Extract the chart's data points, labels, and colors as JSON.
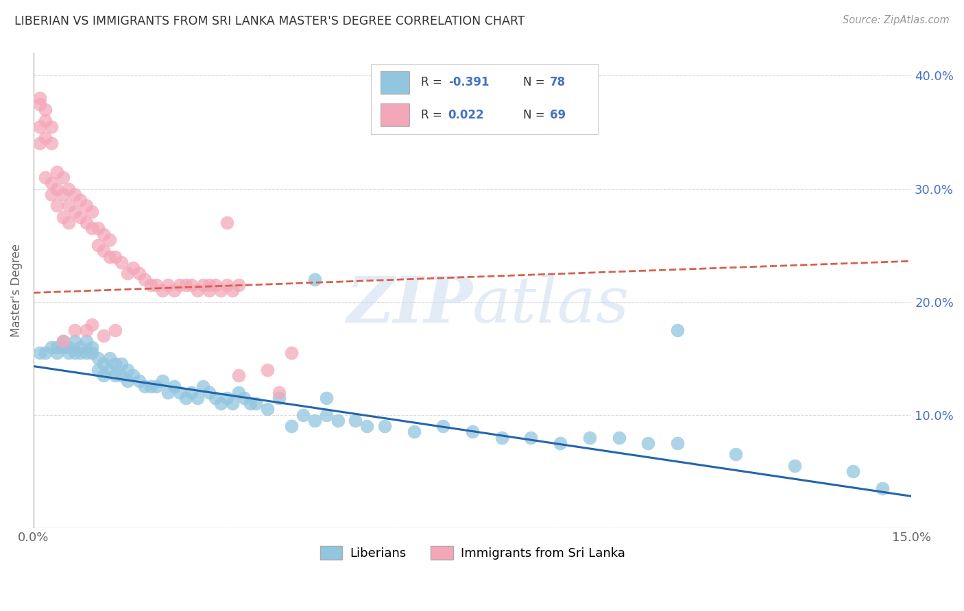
{
  "title": "LIBERIAN VS IMMIGRANTS FROM SRI LANKA MASTER'S DEGREE CORRELATION CHART",
  "source": "Source: ZipAtlas.com",
  "ylabel": "Master's Degree",
  "watermark_zip": "ZIP",
  "watermark_atlas": "atlas",
  "xlim": [
    0.0,
    0.15
  ],
  "ylim": [
    0.0,
    0.42
  ],
  "yticks": [
    0.0,
    0.1,
    0.2,
    0.3,
    0.4
  ],
  "ytick_labels": [
    "",
    "10.0%",
    "20.0%",
    "30.0%",
    "40.0%"
  ],
  "xtick_positions": [
    0.0,
    0.05,
    0.1,
    0.15
  ],
  "xtick_labels": [
    "0.0%",
    "",
    "",
    "15.0%"
  ],
  "blue_color": "#92c5de",
  "pink_color": "#f4a7b9",
  "blue_line_color": "#2166ac",
  "pink_line_color": "#d6604d",
  "legend_label_blue": "Liberians",
  "legend_label_pink": "Immigrants from Sri Lanka",
  "blue_line_x": [
    0.0,
    0.15
  ],
  "blue_line_y": [
    0.143,
    0.028
  ],
  "pink_line_x": [
    0.0,
    0.15
  ],
  "pink_line_y": [
    0.208,
    0.236
  ],
  "blue_dots_x": [
    0.001,
    0.002,
    0.003,
    0.004,
    0.004,
    0.005,
    0.005,
    0.006,
    0.006,
    0.007,
    0.007,
    0.008,
    0.008,
    0.009,
    0.009,
    0.01,
    0.01,
    0.011,
    0.011,
    0.012,
    0.012,
    0.013,
    0.013,
    0.014,
    0.014,
    0.015,
    0.015,
    0.016,
    0.016,
    0.017,
    0.018,
    0.019,
    0.02,
    0.021,
    0.022,
    0.023,
    0.024,
    0.025,
    0.026,
    0.027,
    0.028,
    0.029,
    0.03,
    0.031,
    0.032,
    0.033,
    0.034,
    0.035,
    0.036,
    0.037,
    0.038,
    0.04,
    0.042,
    0.044,
    0.046,
    0.048,
    0.05,
    0.052,
    0.055,
    0.057,
    0.06,
    0.065,
    0.07,
    0.075,
    0.08,
    0.085,
    0.09,
    0.095,
    0.1,
    0.105,
    0.11,
    0.12,
    0.13,
    0.14,
    0.145,
    0.11,
    0.05,
    0.048
  ],
  "blue_dots_y": [
    0.155,
    0.155,
    0.16,
    0.155,
    0.16,
    0.16,
    0.165,
    0.155,
    0.16,
    0.155,
    0.165,
    0.155,
    0.16,
    0.155,
    0.165,
    0.155,
    0.16,
    0.14,
    0.15,
    0.135,
    0.145,
    0.14,
    0.15,
    0.135,
    0.145,
    0.135,
    0.145,
    0.13,
    0.14,
    0.135,
    0.13,
    0.125,
    0.125,
    0.125,
    0.13,
    0.12,
    0.125,
    0.12,
    0.115,
    0.12,
    0.115,
    0.125,
    0.12,
    0.115,
    0.11,
    0.115,
    0.11,
    0.12,
    0.115,
    0.11,
    0.11,
    0.105,
    0.115,
    0.09,
    0.1,
    0.095,
    0.1,
    0.095,
    0.095,
    0.09,
    0.09,
    0.085,
    0.09,
    0.085,
    0.08,
    0.08,
    0.075,
    0.08,
    0.08,
    0.075,
    0.075,
    0.065,
    0.055,
    0.05,
    0.035,
    0.175,
    0.115,
    0.22
  ],
  "pink_dots_x": [
    0.001,
    0.001,
    0.001,
    0.001,
    0.002,
    0.002,
    0.002,
    0.002,
    0.003,
    0.003,
    0.003,
    0.003,
    0.004,
    0.004,
    0.004,
    0.005,
    0.005,
    0.005,
    0.006,
    0.006,
    0.006,
    0.007,
    0.007,
    0.008,
    0.008,
    0.009,
    0.009,
    0.01,
    0.01,
    0.011,
    0.011,
    0.012,
    0.012,
    0.013,
    0.013,
    0.014,
    0.015,
    0.016,
    0.017,
    0.018,
    0.019,
    0.02,
    0.021,
    0.022,
    0.023,
    0.024,
    0.025,
    0.026,
    0.027,
    0.028,
    0.029,
    0.03,
    0.031,
    0.032,
    0.033,
    0.034,
    0.035,
    0.04,
    0.042,
    0.044,
    0.005,
    0.007,
    0.009,
    0.01,
    0.012,
    0.014,
    0.03,
    0.033,
    0.035
  ],
  "pink_dots_y": [
    0.38,
    0.375,
    0.355,
    0.34,
    0.37,
    0.36,
    0.345,
    0.31,
    0.355,
    0.34,
    0.305,
    0.295,
    0.315,
    0.3,
    0.285,
    0.31,
    0.295,
    0.275,
    0.3,
    0.285,
    0.27,
    0.295,
    0.28,
    0.29,
    0.275,
    0.285,
    0.27,
    0.28,
    0.265,
    0.265,
    0.25,
    0.26,
    0.245,
    0.255,
    0.24,
    0.24,
    0.235,
    0.225,
    0.23,
    0.225,
    0.22,
    0.215,
    0.215,
    0.21,
    0.215,
    0.21,
    0.215,
    0.215,
    0.215,
    0.21,
    0.215,
    0.21,
    0.215,
    0.21,
    0.215,
    0.21,
    0.135,
    0.14,
    0.12,
    0.155,
    0.165,
    0.175,
    0.175,
    0.18,
    0.17,
    0.175,
    0.215,
    0.27,
    0.215
  ],
  "grid_color": "#dddddd",
  "background_color": "#ffffff",
  "title_color": "#333333",
  "source_color": "#999999",
  "ylabel_color": "#666666",
  "ytick_color": "#4472c4",
  "xtick_color": "#666666"
}
